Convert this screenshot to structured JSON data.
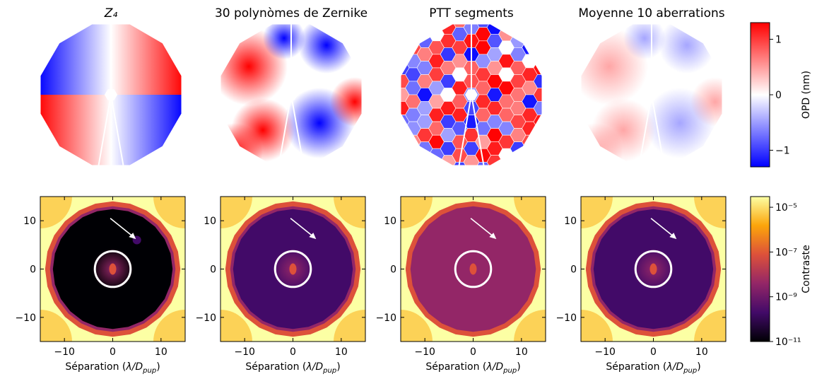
{
  "chart_data": [
    {
      "type": "image",
      "title": "Z₄"
    },
    {
      "type": "image",
      "title": "30 polynòmes de Zernike"
    },
    {
      "type": "image",
      "title": "PTT segments"
    },
    {
      "type": "image",
      "title": "Moyenne 10 aberrations"
    },
    {
      "type": "image",
      "xlabel": [
        "Séparation (",
        "λ/D",
        "pup",
        ")"
      ],
      "xlim": [
        -15,
        15
      ],
      "ylim": [
        -15,
        15
      ],
      "xticks": [
        {
          "value": -10,
          "label": "−10"
        },
        0,
        10
      ],
      "yticks": [
        {
          "value": -10,
          "label": "−10"
        },
        0,
        10
      ]
    },
    {
      "type": "image",
      "xlabel": [
        "Séparation (",
        "λ/D",
        "pup",
        ")"
      ],
      "xlim": [
        -15,
        15
      ],
      "ylim": [
        -15,
        15
      ],
      "xticks": [
        {
          "value": -10,
          "label": "−10"
        },
        0,
        10
      ],
      "yticks": [
        {
          "value": -10,
          "label": "−10"
        },
        0,
        10
      ]
    },
    {
      "type": "image",
      "xlabel": [
        "Séparation (",
        "λ/D",
        "pup",
        ")"
      ],
      "xlim": [
        -15,
        15
      ],
      "ylim": [
        -15,
        15
      ],
      "xticks": [
        {
          "value": -10,
          "label": "−10"
        },
        0,
        10
      ],
      "yticks": [
        {
          "value": -10,
          "label": "−10"
        },
        0,
        10
      ]
    },
    {
      "type": "image",
      "xlabel": [
        "Séparation (",
        "λ/D",
        "pup",
        ")"
      ],
      "xlim": [
        -15,
        15
      ],
      "ylim": [
        -15,
        15
      ],
      "xticks": [
        {
          "value": -10,
          "label": "−10"
        },
        0,
        10
      ],
      "yticks": [
        {
          "value": -10,
          "label": "−10"
        },
        0,
        10
      ]
    },
    {
      "type": "colorbar",
      "label": "OPD (nm)",
      "ylim": [
        -1.3,
        1.3
      ],
      "yticks": [
        {
          "value": -1,
          "label": "−1"
        },
        0,
        1
      ],
      "colors": [
        "#0000ff",
        "#ffffff",
        "#ff0000"
      ],
      "log": false
    },
    {
      "type": "colorbar",
      "label": "Contraste",
      "ylim": [
        1e-11,
        3e-05
      ],
      "log": true,
      "yticks": [
        {
          "value": 1e-11,
          "label": "10⁻¹¹"
        },
        {
          "value": 1e-09,
          "label": "10⁻⁹"
        },
        {
          "value": 1e-07,
          "label": "10⁻⁷"
        },
        {
          "value": 1e-05,
          "label": "10⁻⁵"
        }
      ],
      "colors": [
        "#000004",
        "#420a68",
        "#932667",
        "#dd513a",
        "#fca50a",
        "#fcffa4"
      ]
    }
  ]
}
